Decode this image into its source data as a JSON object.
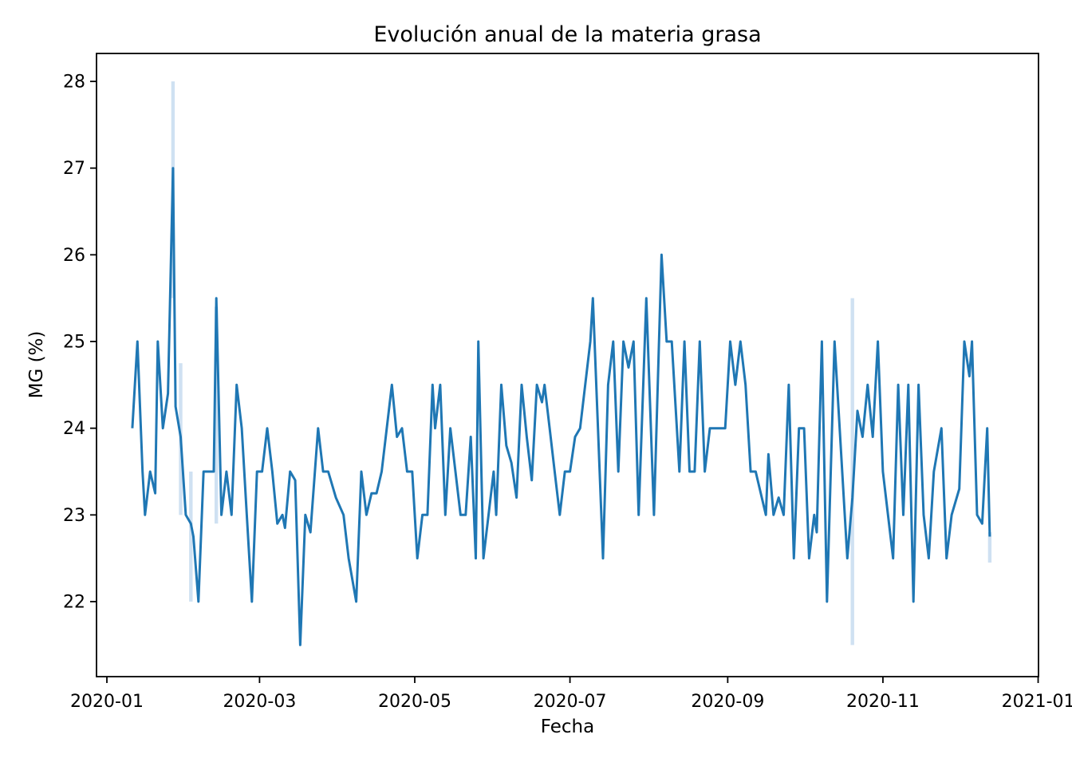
{
  "chart_data": {
    "type": "line",
    "title": "Evolución anual de la materia grasa",
    "xlabel": "Fecha",
    "ylabel": "MG (%)",
    "x_tick_labels": [
      "2020-01",
      "2020-03",
      "2020-05",
      "2020-07",
      "2020-09",
      "2020-11",
      "2021-01"
    ],
    "x_tick_dates": [
      "2020-01-01",
      "2020-03-01",
      "2020-05-01",
      "2020-07-01",
      "2020-09-01",
      "2020-11-01",
      "2021-01-01"
    ],
    "y_ticks": [
      22,
      23,
      24,
      25,
      26,
      27,
      28
    ],
    "ylim": [
      21.17,
      28.33
    ],
    "grid": false,
    "legend": null,
    "line_color": "#1f77b4",
    "band_color": "#cfe1f2",
    "series": [
      {
        "name": "MG (%)",
        "points": [
          [
            "2020-01-11",
            24
          ],
          [
            "2020-01-13",
            25
          ],
          [
            "2020-01-15",
            23.5
          ],
          [
            "2020-01-16",
            23
          ],
          [
            "2020-01-18",
            23.5
          ],
          [
            "2020-01-20",
            23.25
          ],
          [
            "2020-01-21",
            25
          ],
          [
            "2020-01-23",
            24
          ],
          [
            "2020-01-25",
            24.4
          ],
          [
            "2020-01-27",
            27
          ],
          [
            "2020-01-28",
            24.25
          ],
          [
            "2020-01-30",
            23.9
          ],
          [
            "2020-02-01",
            23
          ],
          [
            "2020-02-03",
            22.9
          ],
          [
            "2020-02-04",
            22.75
          ],
          [
            "2020-02-06",
            22
          ],
          [
            "2020-02-08",
            23.5
          ],
          [
            "2020-02-10",
            23.5
          ],
          [
            "2020-02-12",
            23.5
          ],
          [
            "2020-02-13",
            25.5
          ],
          [
            "2020-02-15",
            23
          ],
          [
            "2020-02-17",
            23.5
          ],
          [
            "2020-02-19",
            23
          ],
          [
            "2020-02-21",
            24.5
          ],
          [
            "2020-02-23",
            24
          ],
          [
            "2020-02-25",
            23
          ],
          [
            "2020-02-27",
            22
          ],
          [
            "2020-02-29",
            23.5
          ],
          [
            "2020-03-02",
            23.5
          ],
          [
            "2020-03-04",
            24
          ],
          [
            "2020-03-06",
            23.5
          ],
          [
            "2020-03-08",
            22.9
          ],
          [
            "2020-03-10",
            23
          ],
          [
            "2020-03-11",
            22.85
          ],
          [
            "2020-03-13",
            23.5
          ],
          [
            "2020-03-15",
            23.4
          ],
          [
            "2020-03-17",
            21.5
          ],
          [
            "2020-03-19",
            23
          ],
          [
            "2020-03-21",
            22.8
          ],
          [
            "2020-03-24",
            24
          ],
          [
            "2020-03-26",
            23.5
          ],
          [
            "2020-03-28",
            23.5
          ],
          [
            "2020-03-31",
            23.2
          ],
          [
            "2020-04-03",
            23
          ],
          [
            "2020-04-05",
            22.5
          ],
          [
            "2020-04-08",
            22
          ],
          [
            "2020-04-10",
            23.5
          ],
          [
            "2020-04-12",
            23
          ],
          [
            "2020-04-14",
            23.25
          ],
          [
            "2020-04-16",
            23.25
          ],
          [
            "2020-04-18",
            23.5
          ],
          [
            "2020-04-20",
            24
          ],
          [
            "2020-04-22",
            24.5
          ],
          [
            "2020-04-24",
            23.9
          ],
          [
            "2020-04-26",
            24
          ],
          [
            "2020-04-28",
            23.5
          ],
          [
            "2020-04-30",
            23.5
          ],
          [
            "2020-05-02",
            22.5
          ],
          [
            "2020-05-04",
            23
          ],
          [
            "2020-05-06",
            23
          ],
          [
            "2020-05-08",
            24.5
          ],
          [
            "2020-05-09",
            24
          ],
          [
            "2020-05-11",
            24.5
          ],
          [
            "2020-05-13",
            23
          ],
          [
            "2020-05-15",
            24
          ],
          [
            "2020-05-17",
            23.5
          ],
          [
            "2020-05-19",
            23
          ],
          [
            "2020-05-21",
            23
          ],
          [
            "2020-05-23",
            23.9
          ],
          [
            "2020-05-25",
            22.5
          ],
          [
            "2020-05-26",
            25
          ],
          [
            "2020-05-28",
            22.5
          ],
          [
            "2020-05-30",
            23
          ],
          [
            "2020-06-01",
            23.5
          ],
          [
            "2020-06-02",
            23
          ],
          [
            "2020-06-04",
            24.5
          ],
          [
            "2020-06-06",
            23.8
          ],
          [
            "2020-06-08",
            23.6
          ],
          [
            "2020-06-10",
            23.2
          ],
          [
            "2020-06-12",
            24.5
          ],
          [
            "2020-06-14",
            23.9
          ],
          [
            "2020-06-16",
            23.4
          ],
          [
            "2020-06-18",
            24.5
          ],
          [
            "2020-06-20",
            24.3
          ],
          [
            "2020-06-21",
            24.5
          ],
          [
            "2020-06-23",
            24
          ],
          [
            "2020-06-25",
            23.5
          ],
          [
            "2020-06-27",
            23
          ],
          [
            "2020-06-29",
            23.5
          ],
          [
            "2020-07-01",
            23.5
          ],
          [
            "2020-07-03",
            23.9
          ],
          [
            "2020-07-05",
            24
          ],
          [
            "2020-07-07",
            24.5
          ],
          [
            "2020-07-09",
            25
          ],
          [
            "2020-07-10",
            25.5
          ],
          [
            "2020-07-12",
            24
          ],
          [
            "2020-07-14",
            22.5
          ],
          [
            "2020-07-16",
            24.5
          ],
          [
            "2020-07-18",
            25
          ],
          [
            "2020-07-20",
            23.5
          ],
          [
            "2020-07-22",
            25
          ],
          [
            "2020-07-24",
            24.7
          ],
          [
            "2020-07-26",
            25
          ],
          [
            "2020-07-28",
            23
          ],
          [
            "2020-07-31",
            25.5
          ],
          [
            "2020-08-03",
            23
          ],
          [
            "2020-08-06",
            26
          ],
          [
            "2020-08-08",
            25
          ],
          [
            "2020-08-10",
            25
          ],
          [
            "2020-08-12",
            24
          ],
          [
            "2020-08-13",
            23.5
          ],
          [
            "2020-08-15",
            25
          ],
          [
            "2020-08-17",
            23.5
          ],
          [
            "2020-08-19",
            23.5
          ],
          [
            "2020-08-21",
            25
          ],
          [
            "2020-08-23",
            23.5
          ],
          [
            "2020-08-25",
            24
          ],
          [
            "2020-08-27",
            24
          ],
          [
            "2020-08-29",
            24
          ],
          [
            "2020-08-31",
            24
          ],
          [
            "2020-09-02",
            25
          ],
          [
            "2020-09-04",
            24.5
          ],
          [
            "2020-09-06",
            25
          ],
          [
            "2020-09-08",
            24.5
          ],
          [
            "2020-09-10",
            23.5
          ],
          [
            "2020-09-12",
            23.5
          ],
          [
            "2020-09-14",
            23.25
          ],
          [
            "2020-09-16",
            23
          ],
          [
            "2020-09-17",
            23.7
          ],
          [
            "2020-09-19",
            23
          ],
          [
            "2020-09-21",
            23.2
          ],
          [
            "2020-09-23",
            23
          ],
          [
            "2020-09-25",
            24.5
          ],
          [
            "2020-09-27",
            22.5
          ],
          [
            "2020-09-29",
            24
          ],
          [
            "2020-10-01",
            24
          ],
          [
            "2020-10-03",
            22.5
          ],
          [
            "2020-10-05",
            23
          ],
          [
            "2020-10-06",
            22.8
          ],
          [
            "2020-10-08",
            25
          ],
          [
            "2020-10-10",
            22
          ],
          [
            "2020-10-13",
            25
          ],
          [
            "2020-10-16",
            23.5
          ],
          [
            "2020-10-18",
            22.5
          ],
          [
            "2020-10-20",
            23.2
          ],
          [
            "2020-10-22",
            24.2
          ],
          [
            "2020-10-24",
            23.9
          ],
          [
            "2020-10-26",
            24.5
          ],
          [
            "2020-10-28",
            23.9
          ],
          [
            "2020-10-30",
            25
          ],
          [
            "2020-11-01",
            23.5
          ],
          [
            "2020-11-03",
            23
          ],
          [
            "2020-11-05",
            22.5
          ],
          [
            "2020-11-07",
            24.5
          ],
          [
            "2020-11-09",
            23
          ],
          [
            "2020-11-11",
            24.5
          ],
          [
            "2020-11-13",
            22
          ],
          [
            "2020-11-15",
            24.5
          ],
          [
            "2020-11-17",
            23
          ],
          [
            "2020-11-19",
            22.5
          ],
          [
            "2020-11-21",
            23.5
          ],
          [
            "2020-11-24",
            24
          ],
          [
            "2020-11-26",
            22.5
          ],
          [
            "2020-11-28",
            23
          ],
          [
            "2020-12-01",
            23.3
          ],
          [
            "2020-12-03",
            25
          ],
          [
            "2020-12-05",
            24.6
          ],
          [
            "2020-12-06",
            25
          ],
          [
            "2020-12-08",
            23
          ],
          [
            "2020-12-10",
            22.9
          ],
          [
            "2020-12-12",
            24
          ],
          [
            "2020-12-13",
            22.75
          ]
        ]
      }
    ],
    "error_bands": [
      {
        "date": "2020-01-27",
        "lo": 25.5,
        "hi": 28.0
      },
      {
        "date": "2020-01-30",
        "lo": 23.0,
        "hi": 24.75
      },
      {
        "date": "2020-02-03",
        "lo": 22.0,
        "hi": 23.5
      },
      {
        "date": "2020-02-13",
        "lo": 22.9,
        "hi": 25.4
      },
      {
        "date": "2020-10-20",
        "lo": 21.5,
        "hi": 25.5
      },
      {
        "date": "2020-12-13",
        "lo": 22.45,
        "hi": 22.8
      }
    ]
  }
}
